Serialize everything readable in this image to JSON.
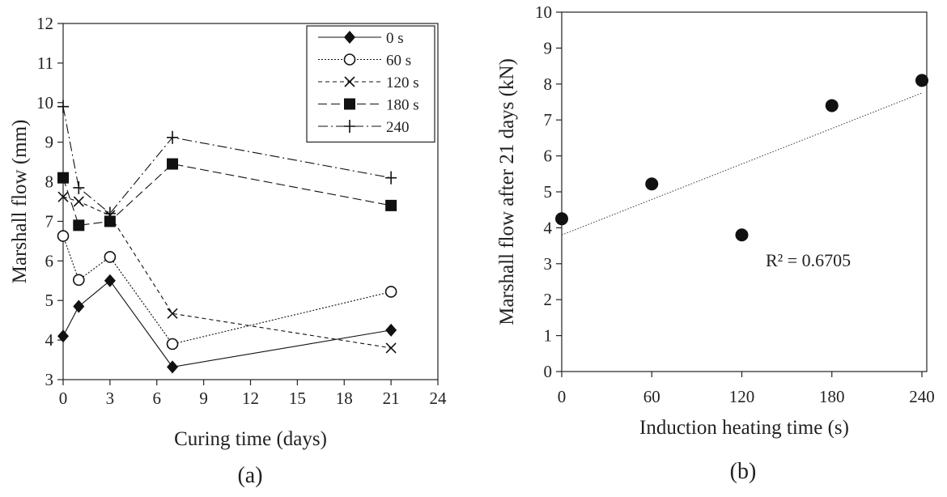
{
  "panel_labels": [
    "(a)",
    "(b)"
  ],
  "chart_data": [
    {
      "type": "line",
      "xlabel": "Curing time (days)",
      "ylabel": "Marshall flow (mm)",
      "xlim": [
        0,
        24
      ],
      "ylim": [
        3,
        12
      ],
      "xticks": [
        0,
        3,
        6,
        9,
        12,
        15,
        18,
        21,
        24
      ],
      "yticks": [
        3,
        4,
        5,
        6,
        7,
        8,
        9,
        10,
        11,
        12
      ],
      "grid": false,
      "legend_position": "top-right",
      "series": [
        {
          "name": "0 s",
          "marker": "diamond",
          "dash": "solid",
          "x": [
            0,
            1,
            3,
            7,
            21
          ],
          "y": [
            4.1,
            4.85,
            5.5,
            3.32,
            4.25
          ]
        },
        {
          "name": "60 s",
          "marker": "circle-open",
          "dash": "dotted",
          "x": [
            0,
            1,
            3,
            7,
            21
          ],
          "y": [
            6.63,
            5.52,
            6.1,
            3.9,
            5.22
          ]
        },
        {
          "name": "120 s",
          "marker": "x",
          "dash": "dashed-short",
          "x": [
            0,
            1,
            3,
            7,
            21
          ],
          "y": [
            7.62,
            7.5,
            7.15,
            4.67,
            3.8
          ]
        },
        {
          "name": "180 s",
          "marker": "square",
          "dash": "dashed-long",
          "x": [
            0,
            1,
            3,
            7,
            21
          ],
          "y": [
            8.1,
            6.9,
            7.0,
            8.45,
            7.4
          ]
        },
        {
          "name": "240",
          "marker": "plus",
          "dash": "dash-dot",
          "x": [
            0,
            1,
            3,
            7,
            21
          ],
          "y": [
            9.9,
            7.85,
            7.2,
            9.12,
            8.1
          ]
        }
      ]
    },
    {
      "type": "scatter",
      "xlabel": "Induction heating time (s)",
      "ylabel": "Marshall flow after 21 days (kN)",
      "xlim": [
        0,
        240
      ],
      "ylim": [
        0,
        10
      ],
      "xticks": [
        0,
        60,
        120,
        180,
        240
      ],
      "yticks": [
        0,
        1,
        2,
        3,
        4,
        5,
        6,
        7,
        8,
        9,
        10
      ],
      "grid": false,
      "points": {
        "x": [
          0,
          60,
          120,
          180,
          240
        ],
        "y": [
          4.25,
          5.22,
          3.8,
          7.4,
          8.1
        ]
      },
      "trendline": {
        "type": "linear",
        "from": [
          0,
          3.8
        ],
        "to": [
          240,
          7.75
        ]
      },
      "annotation": "R² = 0.6705"
    }
  ]
}
